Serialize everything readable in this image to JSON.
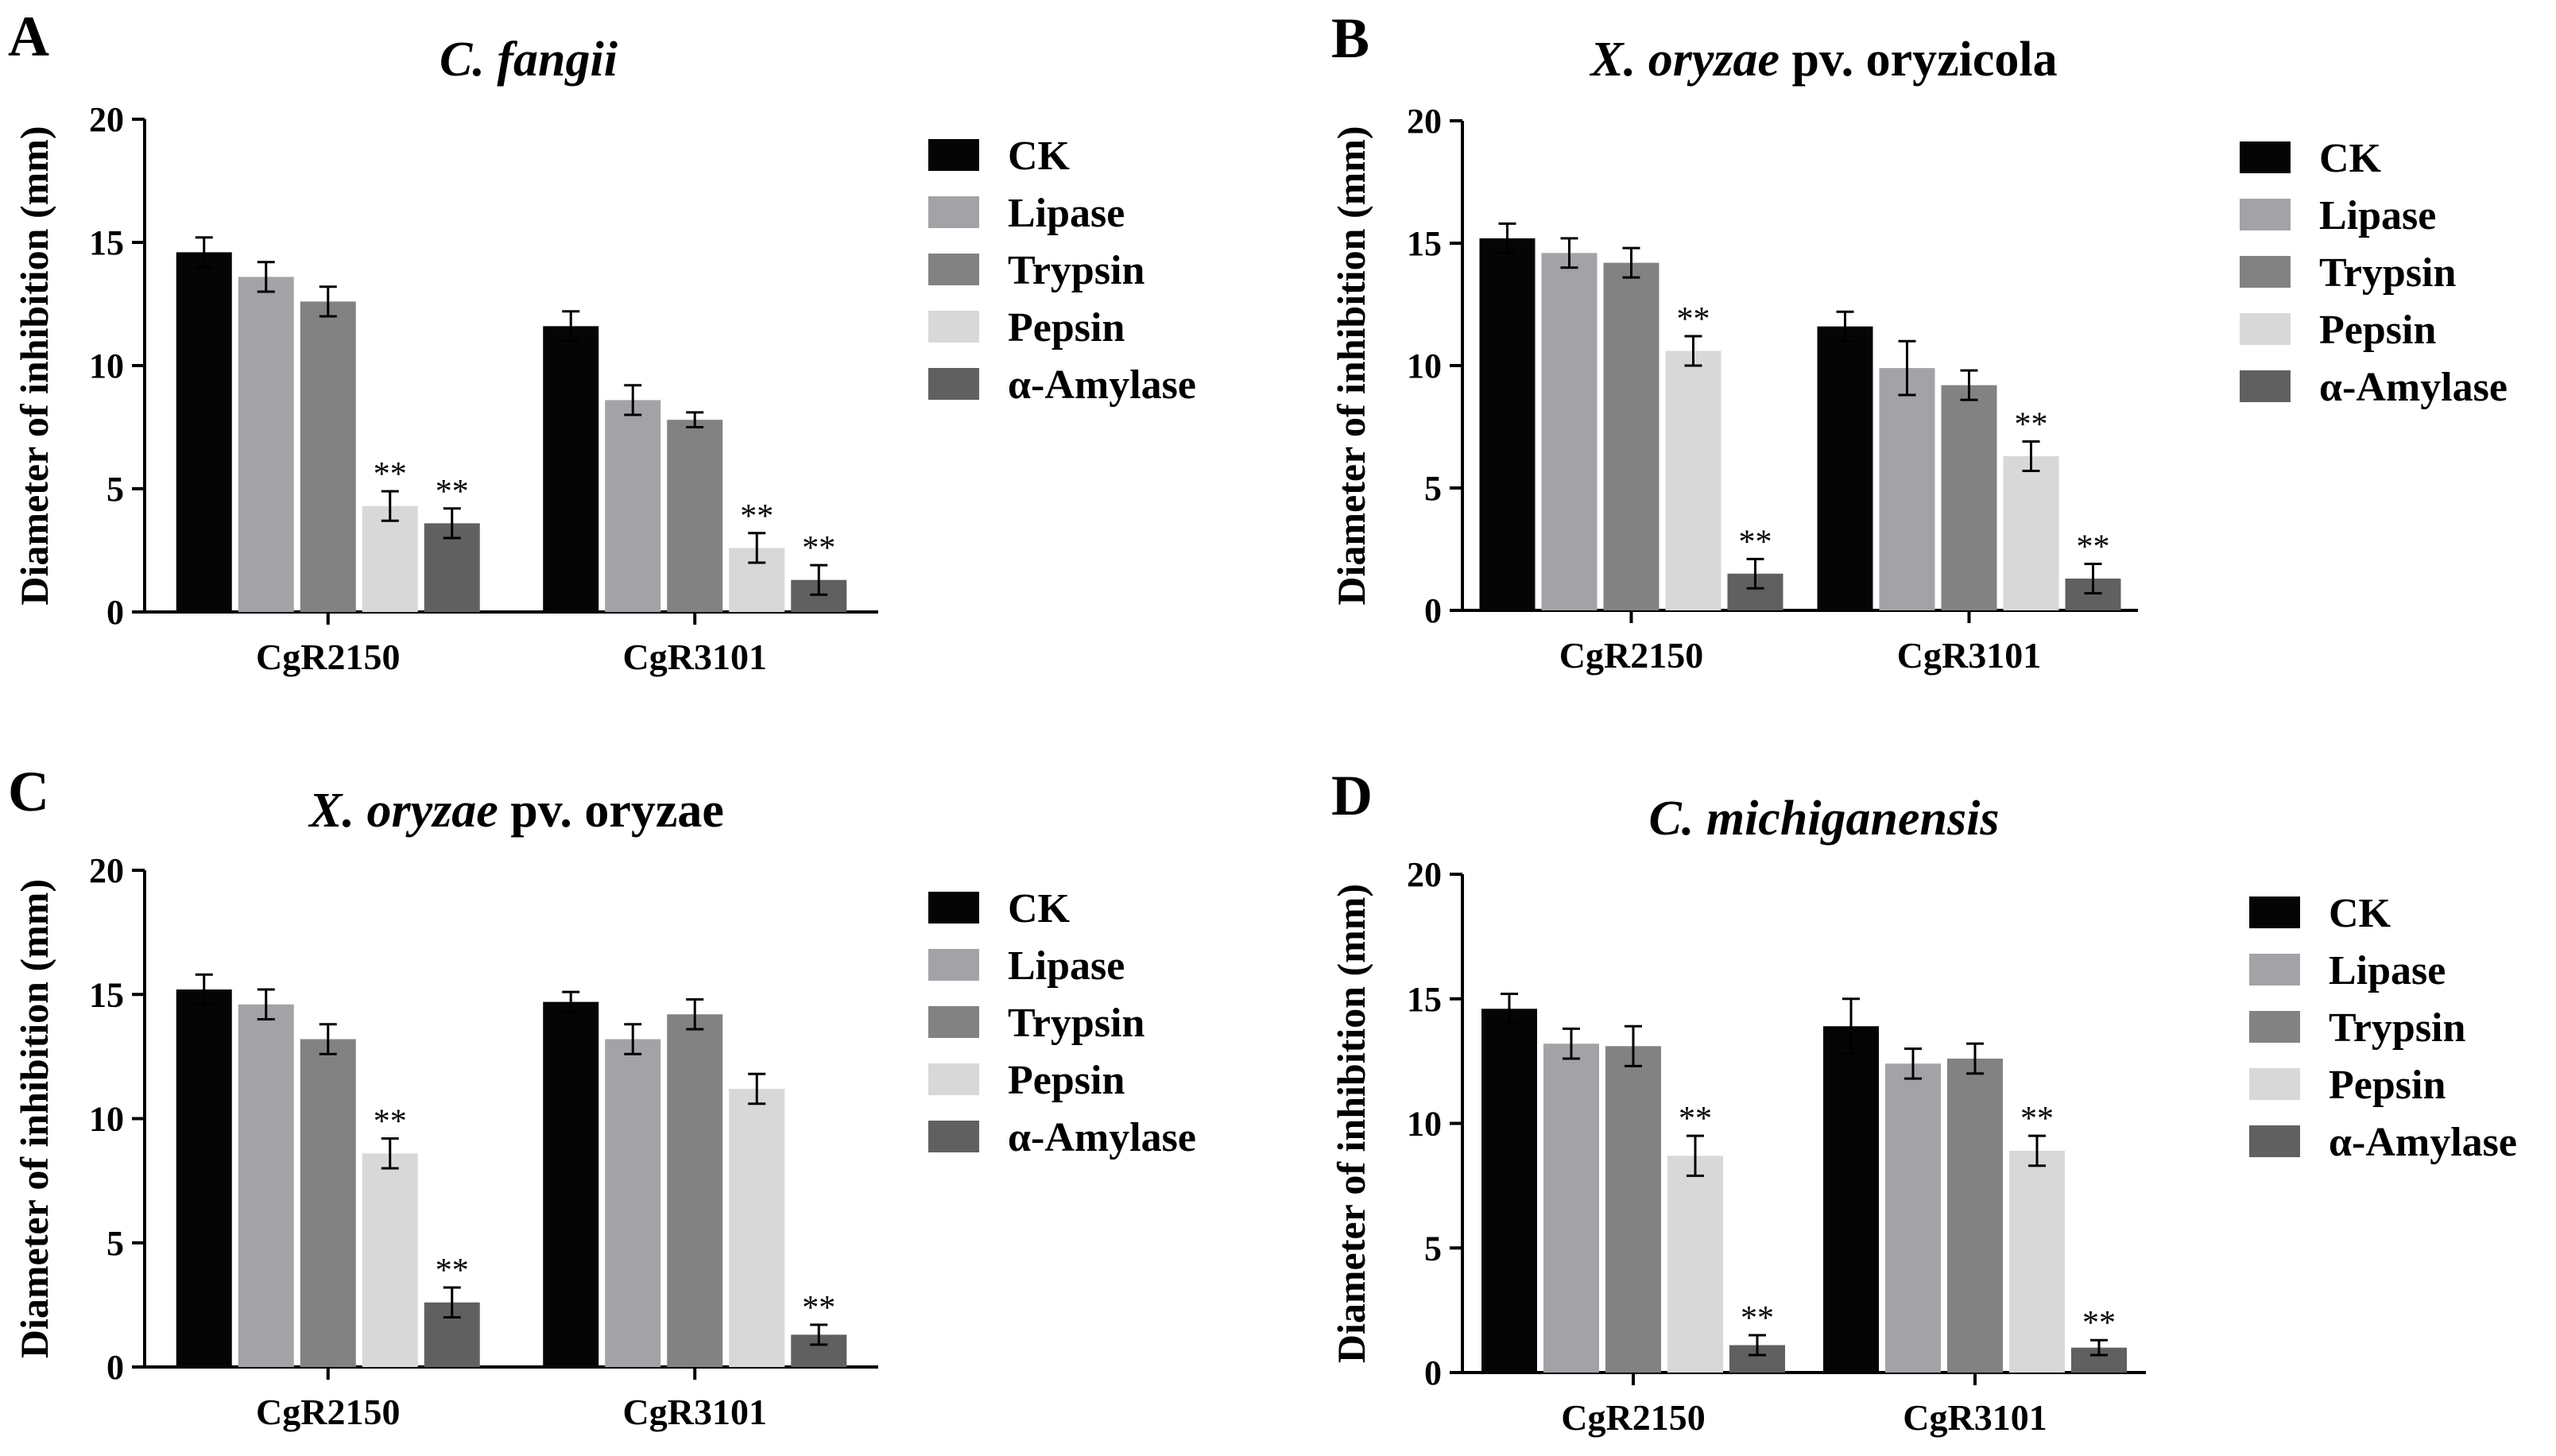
{
  "legend": [
    "CK",
    "Lipase",
    "Trypsin",
    "Pepsin",
    "α-Amylase"
  ],
  "series_colors": [
    "#050505",
    "#a3a3a7",
    "#828282",
    "#d8d8d8",
    "#606060"
  ],
  "chart_data": [
    {
      "panel": "A",
      "type": "bar",
      "title_italic": "C. fangii",
      "title_plain": "",
      "ylabel": "Diameter of inhibition (mm)",
      "ylim": [
        0,
        20
      ],
      "yticks": [
        "0",
        "5",
        "10",
        "15",
        "20"
      ],
      "categories": [
        "CgR2150",
        "CgR3101"
      ],
      "series": [
        {
          "name": "CK",
          "values": [
            14.6,
            11.6
          ],
          "errors": [
            0.6,
            0.6
          ],
          "sig": [
            "",
            ""
          ]
        },
        {
          "name": "Lipase",
          "values": [
            13.6,
            8.6
          ],
          "errors": [
            0.6,
            0.6
          ],
          "sig": [
            "",
            ""
          ]
        },
        {
          "name": "Trypsin",
          "values": [
            12.6,
            7.8
          ],
          "errors": [
            0.6,
            0.3
          ],
          "sig": [
            "",
            ""
          ]
        },
        {
          "name": "Pepsin",
          "values": [
            4.3,
            2.6
          ],
          "errors": [
            0.6,
            0.6
          ],
          "sig": [
            "**",
            "**"
          ]
        },
        {
          "name": "α-Amylase",
          "values": [
            3.6,
            1.3
          ],
          "errors": [
            0.6,
            0.6
          ],
          "sig": [
            "**",
            "**"
          ]
        }
      ]
    },
    {
      "panel": "B",
      "type": "bar",
      "title_italic": "X. oryzae",
      "title_plain": " pv. oryzicola",
      "ylabel": "Diameter of inhibition (mm)",
      "ylim": [
        0,
        20
      ],
      "yticks": [
        "0",
        "5",
        "10",
        "15",
        "20"
      ],
      "categories": [
        "CgR2150",
        "CgR3101"
      ],
      "series": [
        {
          "name": "CK",
          "values": [
            15.2,
            11.6
          ],
          "errors": [
            0.6,
            0.6
          ],
          "sig": [
            "",
            ""
          ]
        },
        {
          "name": "Lipase",
          "values": [
            14.6,
            9.9
          ],
          "errors": [
            0.6,
            1.1
          ],
          "sig": [
            "",
            ""
          ]
        },
        {
          "name": "Trypsin",
          "values": [
            14.2,
            9.2
          ],
          "errors": [
            0.6,
            0.6
          ],
          "sig": [
            "",
            ""
          ]
        },
        {
          "name": "Pepsin",
          "values": [
            10.6,
            6.3
          ],
          "errors": [
            0.6,
            0.6
          ],
          "sig": [
            "**",
            "**"
          ]
        },
        {
          "name": "α-Amylase",
          "values": [
            1.5,
            1.3
          ],
          "errors": [
            0.6,
            0.6
          ],
          "sig": [
            "**",
            "**"
          ]
        }
      ]
    },
    {
      "panel": "C",
      "type": "bar",
      "title_italic": "X. oryzae",
      "title_plain": " pv. oryzae",
      "ylabel": "Diameter of inhibition (mm)",
      "ylim": [
        0,
        20
      ],
      "yticks": [
        "0",
        "5",
        "10",
        "15",
        "20"
      ],
      "categories": [
        "CgR2150",
        "CgR3101"
      ],
      "series": [
        {
          "name": "CK",
          "values": [
            15.2,
            14.7
          ],
          "errors": [
            0.6,
            0.4
          ],
          "sig": [
            "",
            ""
          ]
        },
        {
          "name": "Lipase",
          "values": [
            14.6,
            13.2
          ],
          "errors": [
            0.6,
            0.6
          ],
          "sig": [
            "",
            ""
          ]
        },
        {
          "name": "Trypsin",
          "values": [
            13.2,
            14.2
          ],
          "errors": [
            0.6,
            0.6
          ],
          "sig": [
            "",
            ""
          ]
        },
        {
          "name": "Pepsin",
          "values": [
            8.6,
            11.2
          ],
          "errors": [
            0.6,
            0.6
          ],
          "sig": [
            "**",
            ""
          ]
        },
        {
          "name": "α-Amylase",
          "values": [
            2.6,
            1.3
          ],
          "errors": [
            0.6,
            0.4
          ],
          "sig": [
            "**",
            "**"
          ]
        }
      ]
    },
    {
      "panel": "D",
      "type": "bar",
      "title_italic": "C. michiganensis",
      "title_plain": "",
      "ylabel": "Diameter of inhibition (mm)",
      "ylim": [
        0,
        20
      ],
      "yticks": [
        "0",
        "5",
        "10",
        "15",
        "20"
      ],
      "categories": [
        "CgR2150",
        "CgR3101"
      ],
      "series": [
        {
          "name": "CK",
          "values": [
            14.6,
            13.9
          ],
          "errors": [
            0.6,
            1.1
          ],
          "sig": [
            "",
            ""
          ]
        },
        {
          "name": "Lipase",
          "values": [
            13.2,
            12.4
          ],
          "errors": [
            0.6,
            0.6
          ],
          "sig": [
            "",
            ""
          ]
        },
        {
          "name": "Trypsin",
          "values": [
            13.1,
            12.6
          ],
          "errors": [
            0.8,
            0.6
          ],
          "sig": [
            "",
            ""
          ]
        },
        {
          "name": "Pepsin",
          "values": [
            8.7,
            8.9
          ],
          "errors": [
            0.8,
            0.6
          ],
          "sig": [
            "**",
            "**"
          ]
        },
        {
          "name": "α-Amylase",
          "values": [
            1.1,
            1.0
          ],
          "errors": [
            0.4,
            0.3
          ],
          "sig": [
            "**",
            "**"
          ]
        }
      ]
    }
  ]
}
